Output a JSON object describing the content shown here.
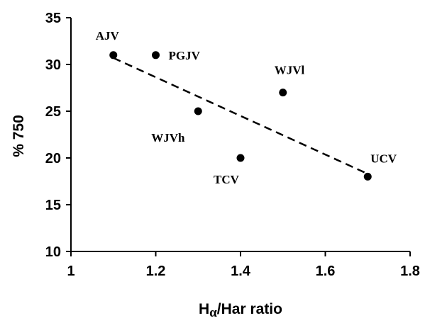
{
  "chart_data": {
    "type": "scatter",
    "title": "",
    "xlabel": {
      "prefix": "H",
      "greek": "α",
      "suffix": "/Har ratio"
    },
    "ylabel": "% 750",
    "xlim": [
      1,
      1.8
    ],
    "ylim": [
      10,
      35
    ],
    "xticks": [
      "1",
      "1.2",
      "1.4",
      "1.6",
      "1.8"
    ],
    "yticks": [
      "10",
      "15",
      "20",
      "25",
      "30",
      "35"
    ],
    "grid": false,
    "legend": "none",
    "points": [
      {
        "label": "AJV",
        "x": 1.1,
        "y": 31
      },
      {
        "label": "PGJV",
        "x": 1.2,
        "y": 31
      },
      {
        "label": "WJVh",
        "x": 1.3,
        "y": 25
      },
      {
        "label": "TCV",
        "x": 1.4,
        "y": 20
      },
      {
        "label": "WJVl",
        "x": 1.5,
        "y": 27
      },
      {
        "label": "UCV",
        "x": 1.7,
        "y": 18
      }
    ],
    "trendline": {
      "style": "dashed",
      "from": {
        "x": 1.1,
        "y": 30.7
      },
      "to": {
        "x": 1.7,
        "y": 18.3
      }
    },
    "colors": {
      "marker": "#000000",
      "line": "#000000"
    }
  }
}
